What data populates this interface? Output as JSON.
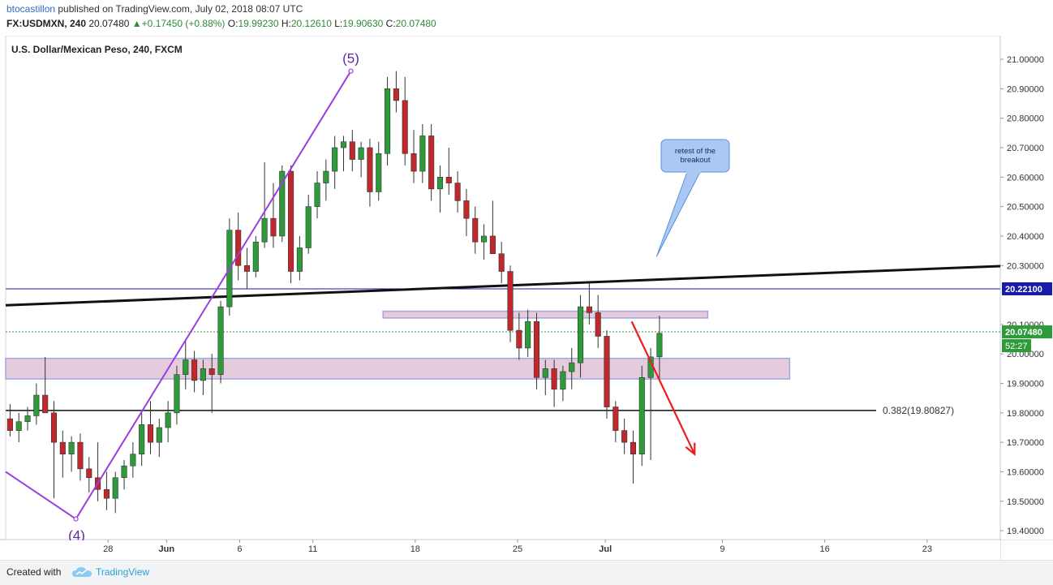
{
  "header": {
    "author": "btocastillon",
    "published": " published on TradingView.com, July 02, 2018 08:07 UTC",
    "symbol": "FX:USDMXN, 240",
    "last": "20.07480",
    "change": "+0.17450 (+0.88%)",
    "o_label": "O:",
    "o_value": "19.99230",
    "h_label": "H:",
    "h_value": "20.12610",
    "l_label": "L:",
    "l_value": "19.90630",
    "c_label": "C:",
    "c_value": "20.07480"
  },
  "footer": {
    "created": "Created with",
    "brand": "TradingView"
  },
  "chart_data": {
    "type": "candlestick",
    "title": "U.S. Dollar/Mexican Peso, 240, FXCM",
    "yticks": [
      "21.00000",
      "20.90000",
      "20.80000",
      "20.70000",
      "20.60000",
      "20.50000",
      "20.40000",
      "20.30000",
      "20.10000",
      "20.00000",
      "19.90000",
      "19.80000",
      "19.70000",
      "19.60000",
      "19.50000",
      "19.40000"
    ],
    "ytick_values": [
      21.0,
      20.9,
      20.8,
      20.7,
      20.6,
      20.5,
      20.4,
      20.3,
      20.1,
      20.0,
      19.9,
      19.8,
      19.7,
      19.6,
      19.5,
      19.4
    ],
    "ylim": [
      19.37,
      21.08
    ],
    "xticks": [
      "28",
      "Jun",
      "6",
      "11",
      "18",
      "25",
      "Jul",
      "9",
      "16",
      "23"
    ],
    "xtick_days": [
      -3,
      1,
      6,
      11,
      18,
      25,
      31,
      39,
      46,
      53
    ],
    "xlim_days": [
      -10,
      58
    ],
    "price_labels": {
      "horizontal_level": "20.22100",
      "last_price": "20.07480",
      "countdown": "52:27"
    },
    "horizontal_level_value": 20.221,
    "last_price_value": 20.0748,
    "fib_level": {
      "label": "0.382(19.80827)",
      "value": 19.80827
    },
    "trendline": {
      "from": {
        "day": -10,
        "price": 20.165
      },
      "to": {
        "day": 58,
        "price": 20.298
      }
    },
    "resistance_box": {
      "from_day": 15.8,
      "to_day": 38.0,
      "top": 20.145,
      "bottom": 20.122
    },
    "support_box": {
      "from_day": -10,
      "to_day": 43.6,
      "top": 19.985,
      "bottom": 19.915
    },
    "wave": [
      {
        "label": "",
        "day": -10,
        "price": 19.6
      },
      {
        "label": "(4)",
        "day": -5.2,
        "price": 19.44
      },
      {
        "label": "(5)",
        "day": 13.6,
        "price": 20.96
      }
    ],
    "annotation": {
      "text": "retest of the breakout",
      "pointer_day": 34.5,
      "pointer_price": 20.33
    },
    "projection_arrow": {
      "from": {
        "day": 32.8,
        "price": 20.11
      },
      "to": {
        "day": 37.1,
        "price": 19.66
      }
    },
    "ohlc_series": [
      {
        "d": -9.7,
        "o": 19.78,
        "h": 19.83,
        "l": 19.72,
        "c": 19.74
      },
      {
        "d": -9.1,
        "o": 19.74,
        "h": 19.8,
        "l": 19.7,
        "c": 19.77
      },
      {
        "d": -8.5,
        "o": 19.77,
        "h": 19.82,
        "l": 19.74,
        "c": 19.79
      },
      {
        "d": -7.9,
        "o": 19.79,
        "h": 19.9,
        "l": 19.76,
        "c": 19.86
      },
      {
        "d": -7.3,
        "o": 19.86,
        "h": 19.99,
        "l": 19.82,
        "c": 19.8
      },
      {
        "d": -6.7,
        "o": 19.8,
        "h": 19.84,
        "l": 19.51,
        "c": 19.7
      },
      {
        "d": -6.1,
        "o": 19.7,
        "h": 19.74,
        "l": 19.58,
        "c": 19.66
      },
      {
        "d": -5.5,
        "o": 19.66,
        "h": 19.72,
        "l": 19.6,
        "c": 19.7
      },
      {
        "d": -4.9,
        "o": 19.7,
        "h": 19.73,
        "l": 19.57,
        "c": 19.61
      },
      {
        "d": -4.3,
        "o": 19.61,
        "h": 19.65,
        "l": 19.53,
        "c": 19.58
      },
      {
        "d": -3.7,
        "o": 19.58,
        "h": 19.7,
        "l": 19.5,
        "c": 19.54
      },
      {
        "d": -3.1,
        "o": 19.54,
        "h": 19.6,
        "l": 19.47,
        "c": 19.51
      },
      {
        "d": -2.5,
        "o": 19.51,
        "h": 19.6,
        "l": 19.46,
        "c": 19.58
      },
      {
        "d": -1.9,
        "o": 19.58,
        "h": 19.64,
        "l": 19.54,
        "c": 19.62
      },
      {
        "d": -1.3,
        "o": 19.62,
        "h": 19.7,
        "l": 19.58,
        "c": 19.66
      },
      {
        "d": -0.7,
        "o": 19.66,
        "h": 19.8,
        "l": 19.62,
        "c": 19.76
      },
      {
        "d": -0.1,
        "o": 19.76,
        "h": 19.84,
        "l": 19.66,
        "c": 19.7
      },
      {
        "d": 0.5,
        "o": 19.7,
        "h": 19.78,
        "l": 19.65,
        "c": 19.75
      },
      {
        "d": 1.1,
        "o": 19.75,
        "h": 19.84,
        "l": 19.7,
        "c": 19.8
      },
      {
        "d": 1.7,
        "o": 19.8,
        "h": 19.96,
        "l": 19.76,
        "c": 19.93
      },
      {
        "d": 2.3,
        "o": 19.93,
        "h": 20.05,
        "l": 19.88,
        "c": 19.98
      },
      {
        "d": 2.9,
        "o": 19.98,
        "h": 20.01,
        "l": 19.87,
        "c": 19.91
      },
      {
        "d": 3.5,
        "o": 19.91,
        "h": 19.98,
        "l": 19.86,
        "c": 19.95
      },
      {
        "d": 4.1,
        "o": 19.95,
        "h": 20.0,
        "l": 19.8,
        "c": 19.93
      },
      {
        "d": 4.7,
        "o": 19.93,
        "h": 20.18,
        "l": 19.9,
        "c": 20.16
      },
      {
        "d": 5.3,
        "o": 20.16,
        "h": 20.46,
        "l": 20.13,
        "c": 20.42
      },
      {
        "d": 5.9,
        "o": 20.42,
        "h": 20.48,
        "l": 20.25,
        "c": 20.3
      },
      {
        "d": 6.5,
        "o": 20.3,
        "h": 20.36,
        "l": 20.22,
        "c": 20.28
      },
      {
        "d": 7.1,
        "o": 20.28,
        "h": 20.4,
        "l": 20.26,
        "c": 20.38
      },
      {
        "d": 7.7,
        "o": 20.38,
        "h": 20.65,
        "l": 20.36,
        "c": 20.46
      },
      {
        "d": 8.3,
        "o": 20.46,
        "h": 20.58,
        "l": 20.36,
        "c": 20.4
      },
      {
        "d": 8.9,
        "o": 20.4,
        "h": 20.64,
        "l": 20.38,
        "c": 20.62
      },
      {
        "d": 9.5,
        "o": 20.62,
        "h": 20.64,
        "l": 20.24,
        "c": 20.28
      },
      {
        "d": 10.1,
        "o": 20.28,
        "h": 20.4,
        "l": 20.25,
        "c": 20.36
      },
      {
        "d": 10.7,
        "o": 20.36,
        "h": 20.54,
        "l": 20.34,
        "c": 20.5
      },
      {
        "d": 11.3,
        "o": 20.5,
        "h": 20.62,
        "l": 20.46,
        "c": 20.58
      },
      {
        "d": 11.9,
        "o": 20.58,
        "h": 20.66,
        "l": 20.52,
        "c": 20.62
      },
      {
        "d": 12.5,
        "o": 20.62,
        "h": 20.74,
        "l": 20.56,
        "c": 20.7
      },
      {
        "d": 13.1,
        "o": 20.7,
        "h": 20.74,
        "l": 20.62,
        "c": 20.72
      },
      {
        "d": 13.7,
        "o": 20.72,
        "h": 20.76,
        "l": 20.62,
        "c": 20.66
      },
      {
        "d": 14.3,
        "o": 20.66,
        "h": 20.72,
        "l": 20.6,
        "c": 20.7
      },
      {
        "d": 14.9,
        "o": 20.7,
        "h": 20.73,
        "l": 20.5,
        "c": 20.55
      },
      {
        "d": 15.5,
        "o": 20.55,
        "h": 20.72,
        "l": 20.52,
        "c": 20.68
      },
      {
        "d": 16.1,
        "o": 20.68,
        "h": 20.94,
        "l": 20.64,
        "c": 20.9
      },
      {
        "d": 16.7,
        "o": 20.9,
        "h": 20.96,
        "l": 20.82,
        "c": 20.86
      },
      {
        "d": 17.3,
        "o": 20.86,
        "h": 20.94,
        "l": 20.64,
        "c": 20.68
      },
      {
        "d": 17.9,
        "o": 20.68,
        "h": 20.76,
        "l": 20.58,
        "c": 20.62
      },
      {
        "d": 18.5,
        "o": 20.62,
        "h": 20.78,
        "l": 20.58,
        "c": 20.74
      },
      {
        "d": 19.1,
        "o": 20.74,
        "h": 20.78,
        "l": 20.52,
        "c": 20.56
      },
      {
        "d": 19.7,
        "o": 20.56,
        "h": 20.64,
        "l": 20.48,
        "c": 20.6
      },
      {
        "d": 20.3,
        "o": 20.6,
        "h": 20.7,
        "l": 20.54,
        "c": 20.58
      },
      {
        "d": 20.9,
        "o": 20.58,
        "h": 20.62,
        "l": 20.48,
        "c": 20.52
      },
      {
        "d": 21.5,
        "o": 20.52,
        "h": 20.56,
        "l": 20.4,
        "c": 20.46
      },
      {
        "d": 22.1,
        "o": 20.46,
        "h": 20.5,
        "l": 20.34,
        "c": 20.38
      },
      {
        "d": 22.7,
        "o": 20.38,
        "h": 20.44,
        "l": 20.32,
        "c": 20.4
      },
      {
        "d": 23.3,
        "o": 20.4,
        "h": 20.52,
        "l": 20.36,
        "c": 20.34
      },
      {
        "d": 23.9,
        "o": 20.34,
        "h": 20.38,
        "l": 20.24,
        "c": 20.28
      },
      {
        "d": 24.5,
        "o": 20.28,
        "h": 20.3,
        "l": 20.04,
        "c": 20.08
      },
      {
        "d": 25.1,
        "o": 20.08,
        "h": 20.14,
        "l": 19.98,
        "c": 20.02
      },
      {
        "d": 25.7,
        "o": 20.02,
        "h": 20.15,
        "l": 19.99,
        "c": 20.11
      },
      {
        "d": 26.3,
        "o": 20.11,
        "h": 20.14,
        "l": 19.88,
        "c": 19.92
      },
      {
        "d": 26.9,
        "o": 19.92,
        "h": 19.98,
        "l": 19.86,
        "c": 19.95
      },
      {
        "d": 27.5,
        "o": 19.95,
        "h": 19.98,
        "l": 19.82,
        "c": 19.88
      },
      {
        "d": 28.1,
        "o": 19.88,
        "h": 19.96,
        "l": 19.84,
        "c": 19.94
      },
      {
        "d": 28.7,
        "o": 19.94,
        "h": 20.02,
        "l": 19.88,
        "c": 19.97
      },
      {
        "d": 29.3,
        "o": 19.97,
        "h": 20.2,
        "l": 19.92,
        "c": 20.16
      },
      {
        "d": 29.9,
        "o": 20.16,
        "h": 20.24,
        "l": 20.1,
        "c": 20.14
      },
      {
        "d": 30.5,
        "o": 20.14,
        "h": 20.2,
        "l": 20.02,
        "c": 20.06
      },
      {
        "d": 31.1,
        "o": 20.06,
        "h": 20.08,
        "l": 19.78,
        "c": 19.82
      },
      {
        "d": 31.7,
        "o": 19.82,
        "h": 19.84,
        "l": 19.7,
        "c": 19.74
      },
      {
        "d": 32.3,
        "o": 19.74,
        "h": 19.78,
        "l": 19.66,
        "c": 19.7
      },
      {
        "d": 32.9,
        "o": 19.7,
        "h": 19.74,
        "l": 19.56,
        "c": 19.66
      },
      {
        "d": 33.5,
        "o": 19.66,
        "h": 19.96,
        "l": 19.62,
        "c": 19.92
      },
      {
        "d": 34.1,
        "o": 19.92,
        "h": 20.02,
        "l": 19.64,
        "c": 19.99
      },
      {
        "d": 34.7,
        "o": 19.99,
        "h": 20.13,
        "l": 19.91,
        "c": 20.07
      }
    ]
  }
}
